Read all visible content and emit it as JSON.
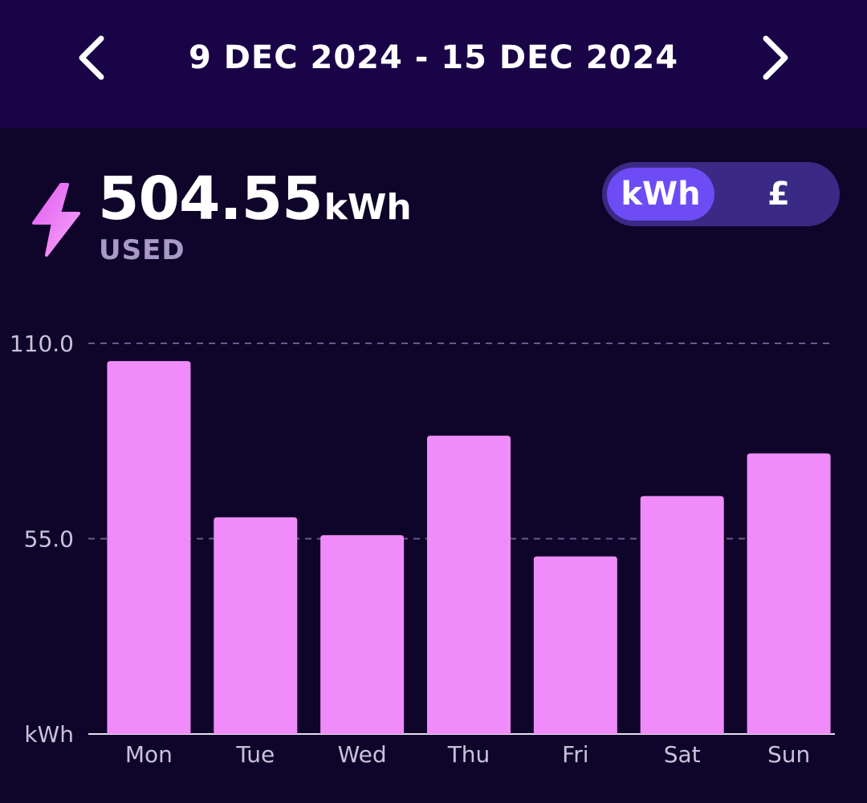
{
  "header": {
    "date_range": "9 DEC 2024 - 15 DEC 2024",
    "prev_icon": "chevron-left-icon",
    "next_icon": "chevron-right-icon"
  },
  "summary": {
    "total_value": "504.55",
    "total_unit": "kWh",
    "label": "USED",
    "icon": "lightning-bolt-icon"
  },
  "toggle": {
    "options": [
      "kWh",
      "£"
    ],
    "selected": "kWh"
  },
  "colors": {
    "bar": "#f08cf9",
    "header_bg": "#1a0448",
    "background": "#0f0429",
    "toggle_active": "#6d4cf5",
    "toggle_bg": "#3a2a85",
    "gridline": "#6b5a8f"
  },
  "chart_data": {
    "type": "bar",
    "categories": [
      "Mon",
      "Tue",
      "Wed",
      "Thu",
      "Fri",
      "Sat",
      "Sun"
    ],
    "values": [
      105,
      61,
      56,
      84,
      50,
      67,
      79
    ],
    "ylim": [
      0,
      110
    ],
    "yticks": [
      {
        "value": 110,
        "label": "110.0"
      },
      {
        "value": 55,
        "label": "55.0"
      },
      {
        "value": 0,
        "label": "kWh"
      }
    ],
    "ylabel": "kWh",
    "grid": true
  }
}
